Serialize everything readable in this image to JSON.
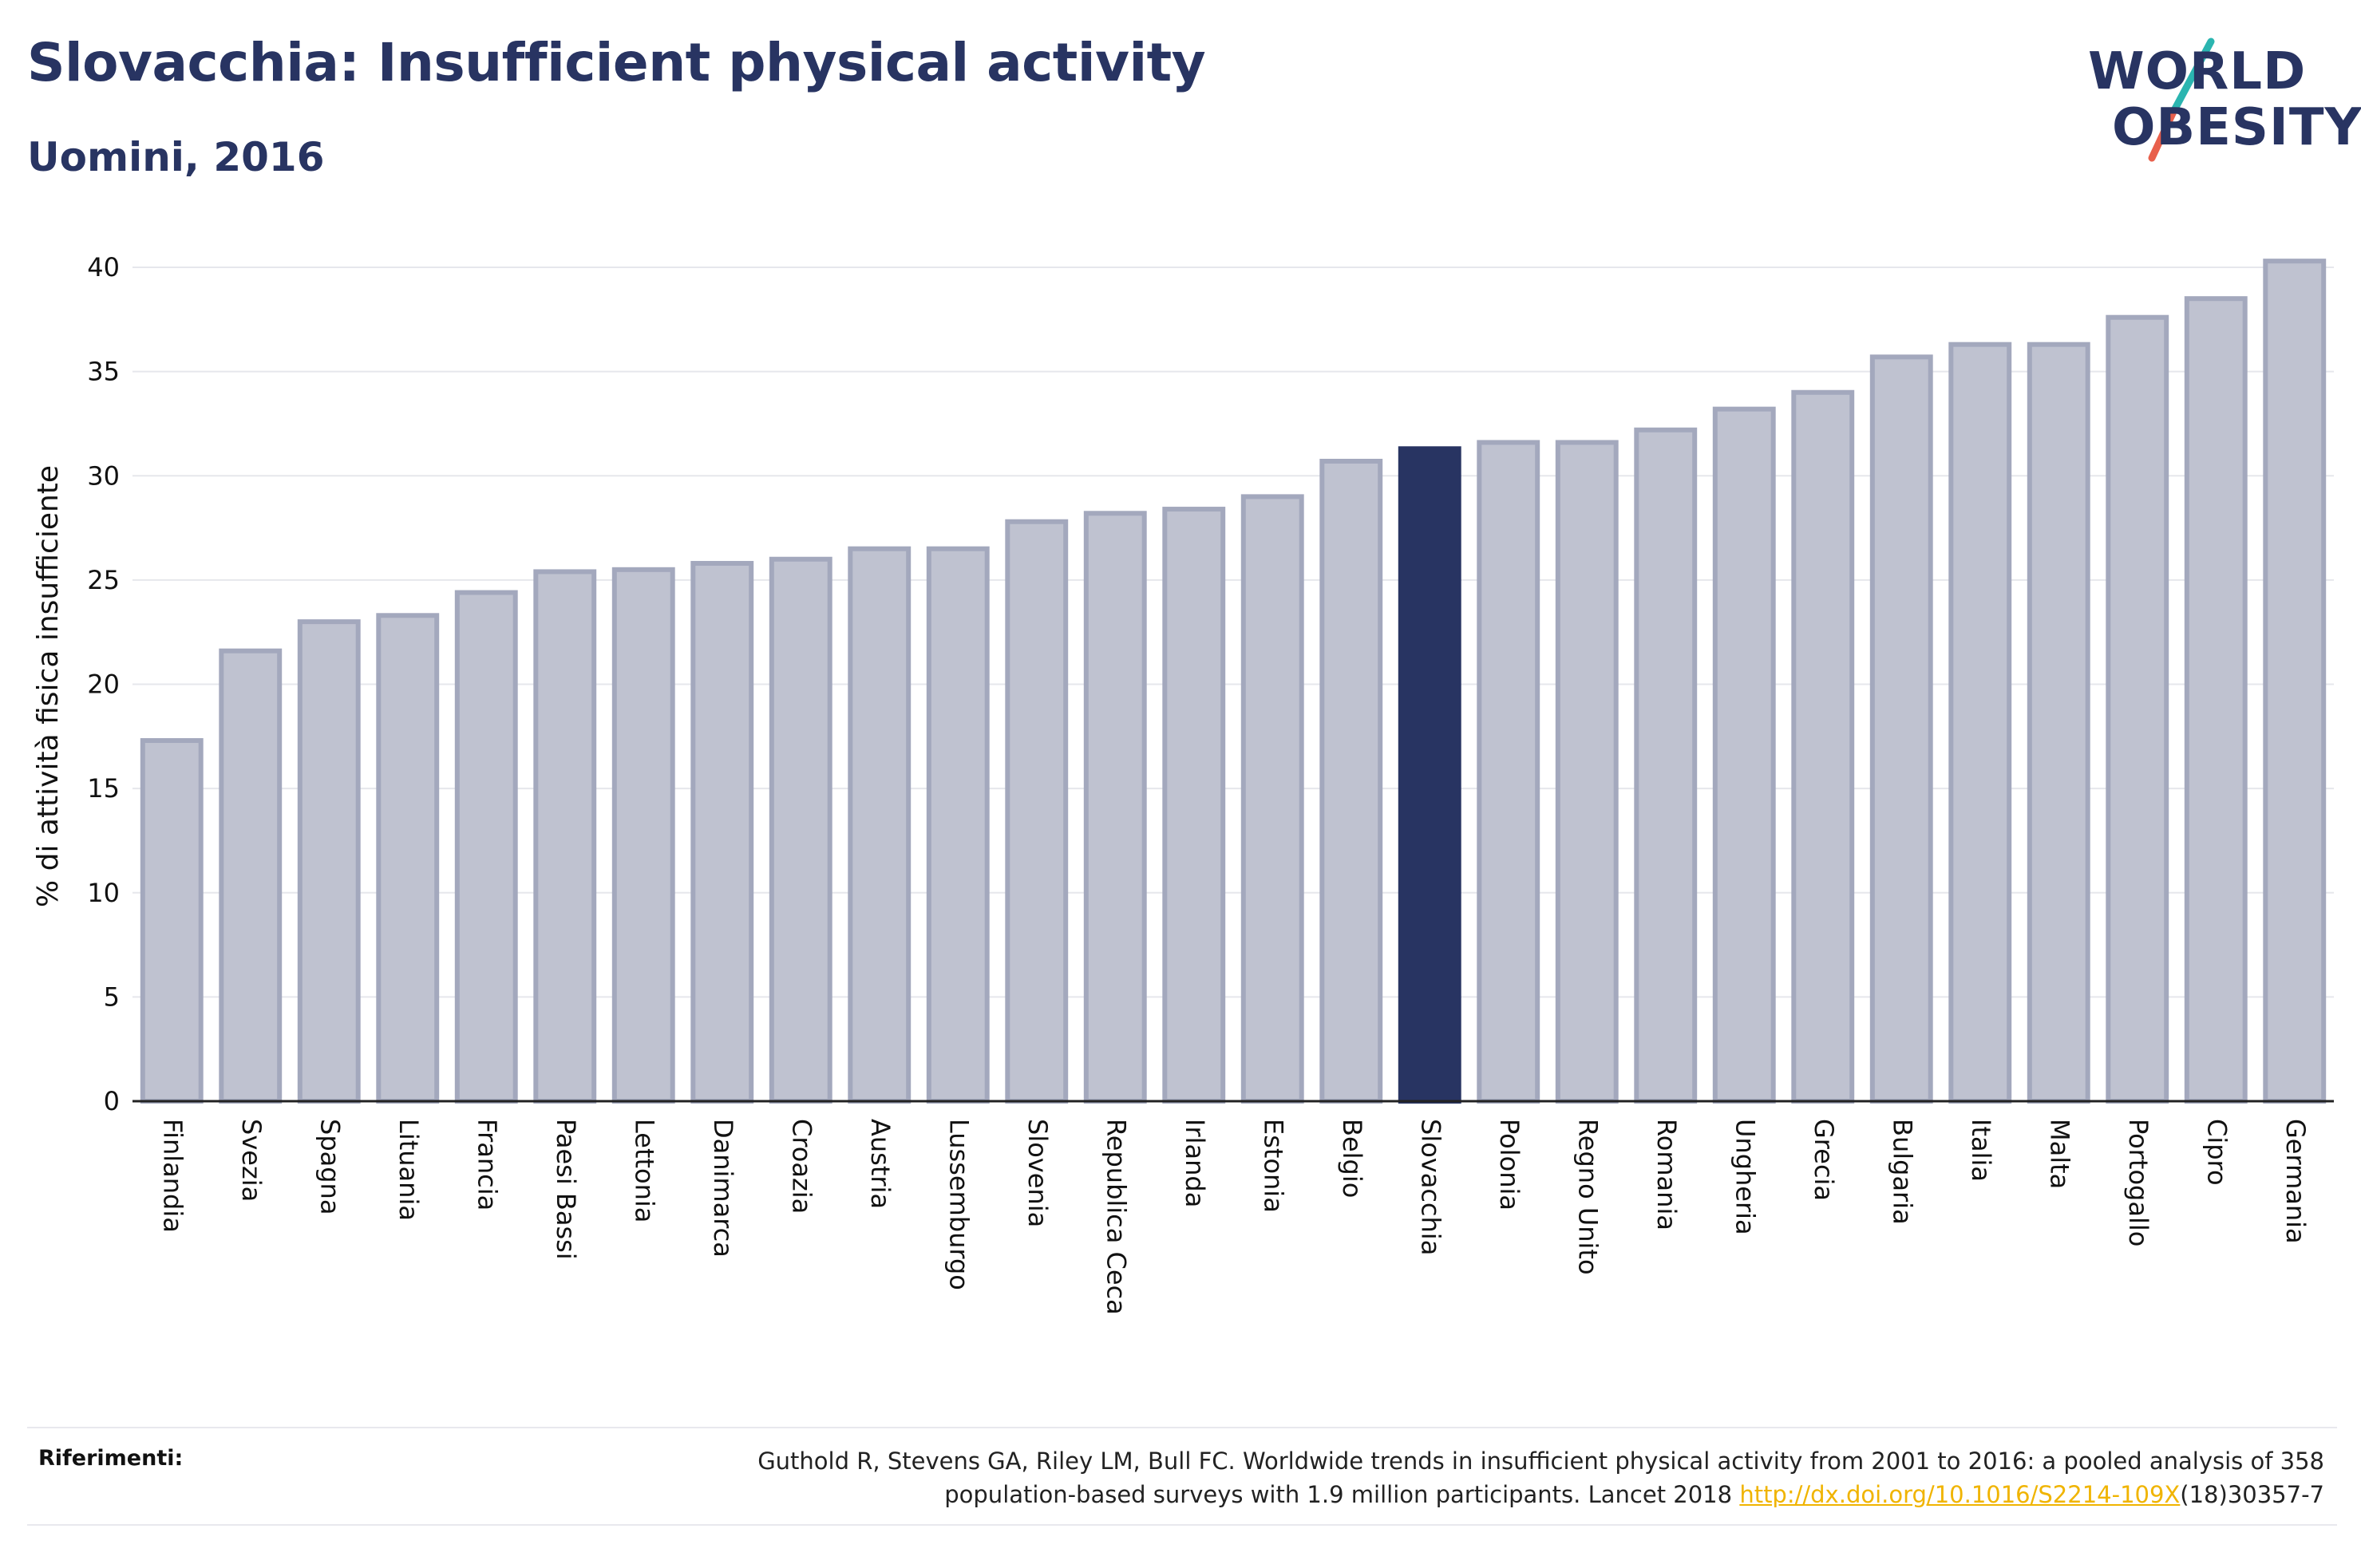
{
  "header": {
    "title": "Slovacchia: Insufficient physical activity",
    "subtitle": "Uomini, 2016"
  },
  "logo": {
    "line1": "WORLD",
    "line2": "OBESITY",
    "brand_color": "#283462",
    "slash_colors": [
      "#2bb5b0",
      "#e8604c"
    ]
  },
  "chart_data": {
    "type": "bar",
    "title": "Slovacchia: Insufficient physical activity",
    "subtitle": "Uomini, 2016",
    "xlabel": "",
    "ylabel": "% di attività fisica insufficiente",
    "ylim": [
      0,
      40
    ],
    "yticks": [
      0,
      5,
      10,
      15,
      20,
      25,
      30,
      35,
      40
    ],
    "grid": true,
    "highlight": "Slovacchia",
    "colors": {
      "bar": "#bfc2d0",
      "bar_edge": "#a3a8bd",
      "highlight": "#283462"
    },
    "categories": [
      "Finlandia",
      "Svezia",
      "Spagna",
      "Lituania",
      "Francia",
      "Paesi Bassi",
      "Lettonia",
      "Danimarca",
      "Croazia",
      "Austria",
      "Lussemburgo",
      "Slovenia",
      "Republica Ceca",
      "Irlanda",
      "Estonia",
      "Belgio",
      "Slovacchia",
      "Polonia",
      "Regno Unito",
      "Romania",
      "Ungheria",
      "Grecia",
      "Bulgaria",
      "Italia",
      "Malta",
      "Portogallo",
      "Cipro",
      "Germania"
    ],
    "values": [
      17.3,
      21.6,
      23.0,
      23.3,
      24.4,
      25.4,
      25.5,
      25.8,
      26.0,
      26.5,
      26.5,
      27.8,
      28.2,
      28.4,
      29.0,
      30.7,
      31.3,
      31.6,
      31.6,
      32.2,
      33.2,
      34.0,
      35.7,
      36.3,
      36.3,
      37.6,
      38.5,
      40.3
    ]
  },
  "references": {
    "label": "Riferimenti:",
    "line1": "Guthold R, Stevens GA, Riley LM, Bull FC. Worldwide trends in insufficient physical activity from 2001 to 2016: a pooled analysis of 358",
    "line2_before": "population-based surveys with 1.9 million participants. Lancet 2018 ",
    "link": "http://dx.doi.org/10.1016/S2214-109X",
    "line2_after": "(18)30357-7"
  }
}
